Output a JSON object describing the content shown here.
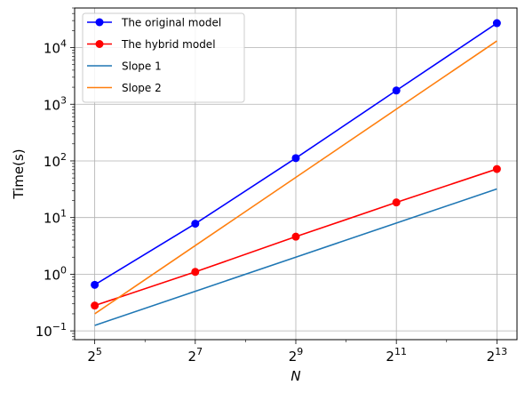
{
  "chart_data": {
    "type": "line",
    "x_scale": "log2",
    "y_scale": "log10",
    "xlabel": "N",
    "ylabel": "Time(s)",
    "x": [
      32,
      128,
      512,
      2048,
      8192
    ],
    "x_tick_labels": [
      {
        "base": "2",
        "exp": "5"
      },
      {
        "base": "2",
        "exp": "7"
      },
      {
        "base": "2",
        "exp": "9"
      },
      {
        "base": "2",
        "exp": "11"
      },
      {
        "base": "2",
        "exp": "13"
      }
    ],
    "y_tick_labels": [
      {
        "base": "10",
        "exp": "−1"
      },
      {
        "base": "10",
        "exp": "0"
      },
      {
        "base": "10",
        "exp": "1"
      },
      {
        "base": "10",
        "exp": "2"
      },
      {
        "base": "10",
        "exp": "3"
      },
      {
        "base": "10",
        "exp": "4"
      }
    ],
    "ylim": [
      0.07,
      50000
    ],
    "grid": true,
    "legend_position": "top-left",
    "series": [
      {
        "name": "The original model",
        "color": "#0000ff",
        "marker": "circle",
        "values": [
          0.65,
          7.8,
          112,
          1750,
          27000
        ]
      },
      {
        "name": "The hybrid model",
        "color": "#ff0000",
        "marker": "circle",
        "values": [
          0.28,
          1.1,
          4.6,
          18.5,
          72
        ]
      },
      {
        "name": "Slope 1",
        "color": "#1f77b4",
        "marker": "none",
        "values": [
          0.125,
          0.5,
          2,
          8,
          32
        ]
      },
      {
        "name": "Slope 2",
        "color": "#ff7f0e",
        "marker": "none",
        "values": [
          0.2,
          3.2,
          51.2,
          819.2,
          13107.2
        ]
      }
    ]
  }
}
